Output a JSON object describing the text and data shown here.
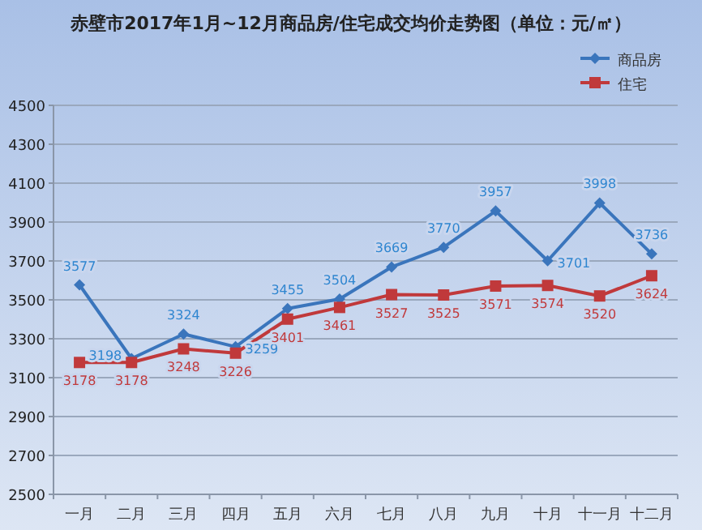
{
  "chart_data": {
    "type": "line",
    "title": "赤壁市2017年1月~12月商品房/住宅成交均价走势图（单位：元/㎡）",
    "categories": [
      "一月",
      "二月",
      "三月",
      "四月",
      "五月",
      "六月",
      "七月",
      "八月",
      "九月",
      "十月",
      "十一月",
      "十二月"
    ],
    "series": [
      {
        "name": "商品房",
        "color": "#3a75bc",
        "marker": "diamond",
        "values": [
          3577,
          3198,
          3324,
          3259,
          3455,
          3504,
          3669,
          3770,
          3957,
          3701,
          3998,
          3736
        ]
      },
      {
        "name": "住宅",
        "color": "#c0393b",
        "marker": "square",
        "values": [
          3178,
          3178,
          3248,
          3226,
          3401,
          3461,
          3527,
          3525,
          3571,
          3574,
          3520,
          3624
        ]
      }
    ],
    "ylim": [
      2500,
      4500
    ],
    "yticks": [
      2500,
      2700,
      2900,
      3100,
      3300,
      3500,
      3700,
      3900,
      4100,
      4300,
      4500
    ],
    "grid": "y",
    "legend": "top right",
    "data_labels": true
  }
}
